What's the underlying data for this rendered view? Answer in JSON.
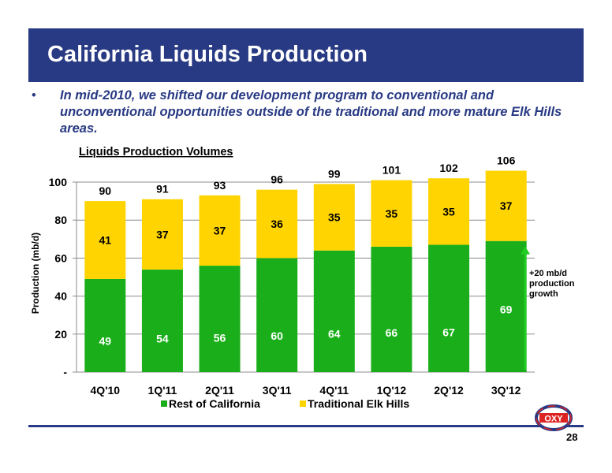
{
  "slide": {
    "title": "California Liquids Production",
    "bullet_symbol": "•",
    "bullet": "In mid-2010, we shifted our development program to conventional and unconventional opportunities outside of the traditional and more mature Elk Hills areas.",
    "page_number": "28",
    "logo_text": "OXY"
  },
  "colors": {
    "title_bar": "#283a83",
    "rest_of_california": "#1aaf1a",
    "traditional_elk_hills": "#ffd400",
    "arrow": "#22cc22"
  },
  "chart_data": {
    "type": "bar",
    "stacked": true,
    "title": "Liquids Production Volumes",
    "xlabel": "",
    "ylabel": "Production (mb/d)",
    "ylim": [
      0,
      100
    ],
    "yticks": [
      0,
      20,
      40,
      60,
      80,
      100
    ],
    "ytick_labels": [
      "-",
      "20",
      "40",
      "60",
      "80",
      "100"
    ],
    "grid": true,
    "legend_position": "bottom",
    "categories": [
      "4Q'10",
      "1Q'11",
      "2Q'11",
      "3Q'11",
      "4Q'11",
      "1Q'12",
      "2Q'12",
      "3Q'12"
    ],
    "series": [
      {
        "name": "Rest of California",
        "values": [
          49,
          54,
          56,
          60,
          64,
          66,
          67,
          69
        ]
      },
      {
        "name": "Traditional Elk Hills",
        "values": [
          41,
          37,
          37,
          36,
          35,
          35,
          35,
          37
        ]
      }
    ],
    "totals": [
      90,
      91,
      93,
      96,
      99,
      101,
      102,
      106
    ],
    "annotation": [
      "+20 mb/d",
      "production",
      "growth"
    ]
  }
}
